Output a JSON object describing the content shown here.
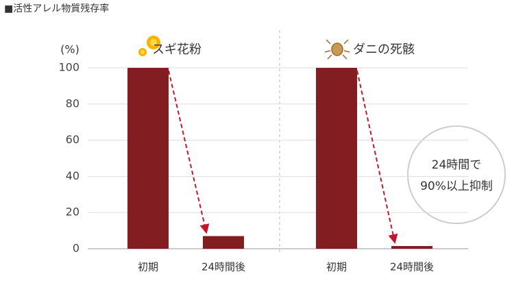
{
  "chart_data": [
    {
      "type": "bar",
      "title": "■活性アレル物質残存率",
      "y_label": "(%)",
      "subtitle": "スギ花粉",
      "categories": [
        "初期",
        "24時間後"
      ],
      "values": [
        100,
        7
      ],
      "color": "#821e22",
      "ylim": [
        0,
        100
      ],
      "yticks": [
        0,
        20,
        40,
        60,
        80,
        100
      ],
      "grid": true
    },
    {
      "type": "bar",
      "subtitle": "ダニの死骸",
      "categories": [
        "初期",
        "24時間後"
      ],
      "values": [
        100,
        1.5
      ],
      "color": "#821e22",
      "ylim": [
        0,
        100
      ],
      "annotation": [
        "24時間で",
        "90%以上抑制"
      ]
    }
  ]
}
